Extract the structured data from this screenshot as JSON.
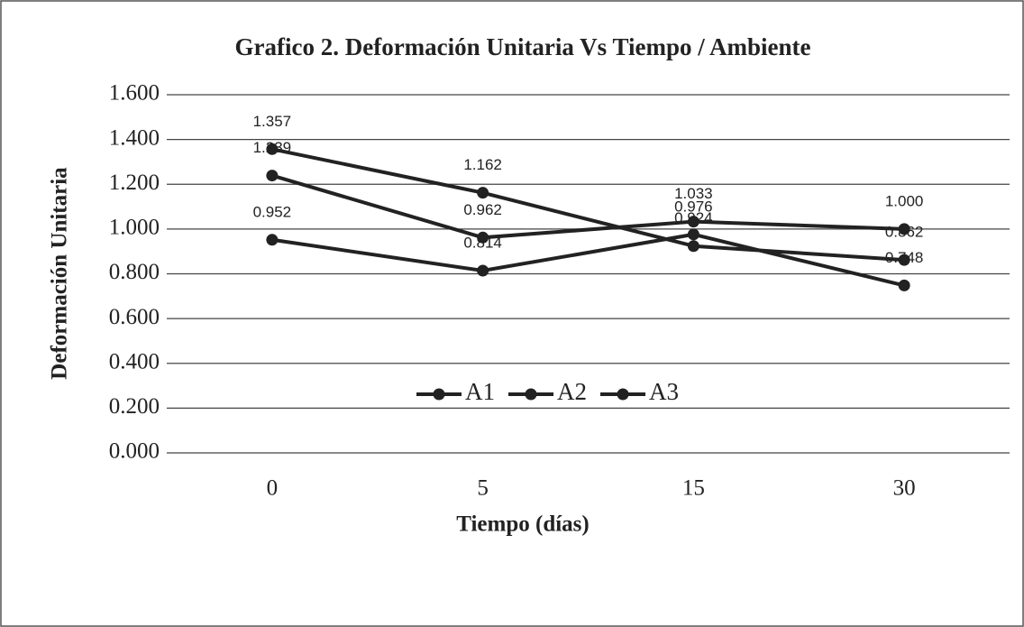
{
  "chart_data": {
    "type": "line",
    "title": "Grafico 2. Deformación Unitaria Vs Tiempo / Ambiente",
    "x_label": "Tiempo (días)",
    "y_label": "Deformación Unitaria",
    "categories": [
      "0",
      "5",
      "15",
      "30"
    ],
    "series": [
      {
        "name": "A1",
        "color": "#222222",
        "values": [
          0.952,
          0.814,
          0.976,
          0.748
        ]
      },
      {
        "name": "A2",
        "color": "#222222",
        "values": [
          1.239,
          0.962,
          1.033,
          1.0
        ]
      },
      {
        "name": "A3",
        "color": "#222222",
        "values": [
          1.357,
          1.162,
          0.924,
          0.862
        ]
      }
    ],
    "ylim": [
      0,
      1.6
    ],
    "yticks": [
      {
        "value": 0,
        "label": "0.000"
      },
      {
        "value": 0.2,
        "label": "0.200"
      },
      {
        "value": 0.4,
        "label": "0.400"
      },
      {
        "value": 0.6,
        "label": "0.600"
      },
      {
        "value": 0.8,
        "label": "0.800"
      },
      {
        "value": 1.0,
        "label": "1.000"
      },
      {
        "value": 1.2,
        "label": "1.200"
      },
      {
        "value": 1.4,
        "label": "1.400"
      },
      {
        "value": 1.6,
        "label": "1.600"
      }
    ],
    "value_labels": [
      [
        "0.952",
        "0.814",
        "0.976",
        "0.748"
      ],
      [
        "1.239",
        "0.962",
        "1.033",
        "1.000"
      ],
      [
        "1.357",
        "1.162",
        "0.924",
        "0.862"
      ]
    ],
    "grid": true,
    "legend": "center"
  }
}
